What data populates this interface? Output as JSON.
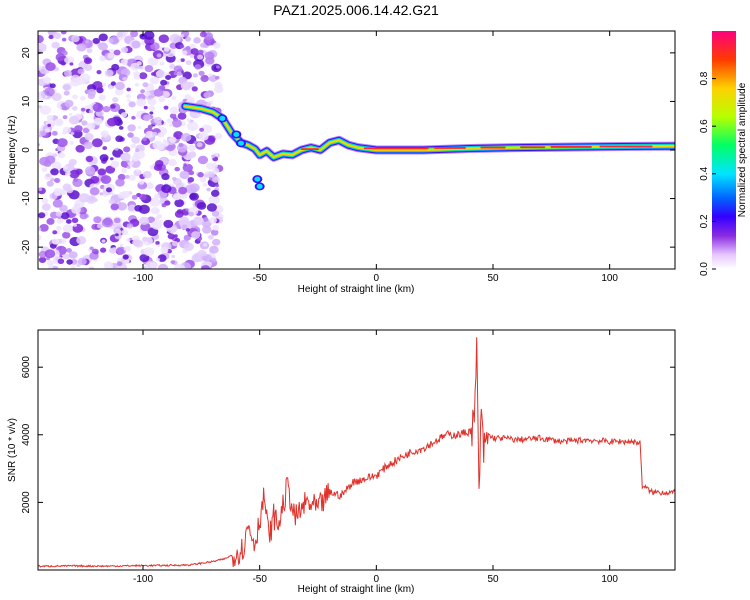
{
  "title": "PAZ1.2025.006.14.42.G21",
  "colors": {
    "axis": "#000000",
    "snr_line": "#e0312a",
    "colormap": [
      "#ffffff",
      "#e8c8ff",
      "#8a2be2",
      "#3a0cff",
      "#0066ff",
      "#00e5ff",
      "#00ff6a",
      "#b7ff00",
      "#ffd000",
      "#ff3a00",
      "#ff0080"
    ]
  },
  "chart_data": [
    {
      "type": "heatmap",
      "xlabel": "Height of straight line (km)",
      "ylabel": "Frequency (Hz)",
      "xlim": [
        -145,
        128
      ],
      "ylim": [
        -24.5,
        24.5
      ],
      "xticks": [
        "-100",
        "-50",
        "0",
        "50",
        "100"
      ],
      "yticks": [
        "20",
        "10",
        "0",
        "-10",
        "-20"
      ],
      "grid": false,
      "signal_track": [
        {
          "x": -82,
          "y": 9.0
        },
        {
          "x": -75,
          "y": 8.5
        },
        {
          "x": -70,
          "y": 7.8
        },
        {
          "x": -66,
          "y": 6.5
        },
        {
          "x": -62,
          "y": 3.5
        },
        {
          "x": -58,
          "y": 1.5
        },
        {
          "x": -55,
          "y": 1.0
        },
        {
          "x": -52,
          "y": 0.2
        },
        {
          "x": -50,
          "y": -1.0
        },
        {
          "x": -47,
          "y": -0.2
        },
        {
          "x": -44,
          "y": -1.5
        },
        {
          "x": -40,
          "y": -0.8
        },
        {
          "x": -36,
          "y": -1.0
        },
        {
          "x": -32,
          "y": 0.0
        },
        {
          "x": -28,
          "y": 0.5
        },
        {
          "x": -24,
          "y": 0.0
        },
        {
          "x": -20,
          "y": 1.5
        },
        {
          "x": -16,
          "y": 2.0
        },
        {
          "x": -12,
          "y": 1.0
        },
        {
          "x": -8,
          "y": 0.5
        },
        {
          "x": 0,
          "y": 0.0
        },
        {
          "x": 20,
          "y": 0.0
        },
        {
          "x": 40,
          "y": 0.3
        },
        {
          "x": 60,
          "y": 0.5
        },
        {
          "x": 80,
          "y": 0.6
        },
        {
          "x": 100,
          "y": 0.7
        },
        {
          "x": 128,
          "y": 0.8
        }
      ],
      "colorbar": {
        "label": "Normalized spectral amplitude",
        "ticks": [
          "0.0",
          "0.2",
          "0.4",
          "0.6",
          "0.8"
        ],
        "range": [
          0,
          1
        ]
      }
    },
    {
      "type": "line",
      "xlabel": "Height of straight line (km)",
      "ylabel": "SNR (10 * v/v)",
      "xlim": [
        -145,
        128
      ],
      "ylim": [
        0,
        7100
      ],
      "xticks": [
        "-100",
        "-50",
        "0",
        "50",
        "100"
      ],
      "yticks": [
        "2000",
        "4000",
        "6000"
      ],
      "grid": false,
      "series": [
        {
          "x": [
            -145,
            -130,
            -115,
            -100,
            -90,
            -80,
            -70,
            -65,
            -60,
            -57,
            -55,
            -52,
            -50,
            -48,
            -46,
            -44,
            -42,
            -40,
            -38,
            -35,
            -30,
            -25,
            -20,
            -15,
            -10,
            -5,
            0,
            5,
            10,
            15,
            20,
            25,
            30,
            35,
            40,
            42,
            43,
            44,
            45,
            46,
            48,
            50,
            55,
            60,
            70,
            80,
            90,
            100,
            110,
            113,
            114,
            118,
            122,
            128
          ],
          "y": [
            110,
            120,
            115,
            130,
            135,
            150,
            250,
            330,
            500,
            650,
            1300,
            800,
            1500,
            2200,
            900,
            1600,
            1300,
            1900,
            2500,
            1500,
            2000,
            1800,
            2300,
            2200,
            2600,
            2700,
            2800,
            3100,
            3300,
            3500,
            3600,
            3800,
            4000,
            4000,
            4100,
            4300,
            6500,
            2500,
            4500,
            3500,
            4000,
            3900,
            3900,
            3850,
            3900,
            3800,
            3850,
            3800,
            3800,
            3750,
            2500,
            2300,
            2300,
            2300
          ]
        }
      ]
    }
  ]
}
